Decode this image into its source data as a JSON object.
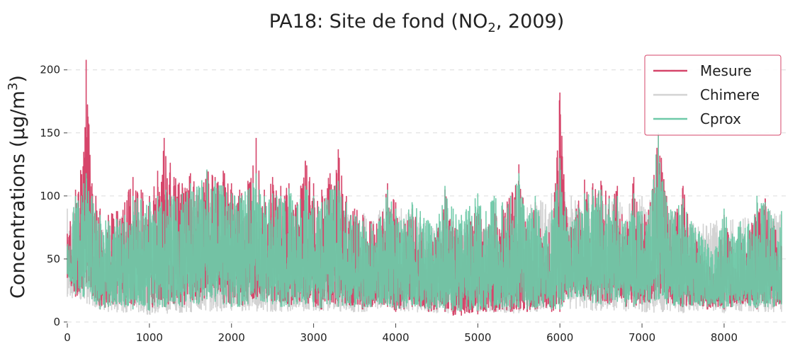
{
  "chart_data": {
    "type": "line",
    "title": {
      "prefix": "PA18: Site de fond (NO",
      "sub": "2",
      "suffix": ", 2009)"
    },
    "ylabel": {
      "prefix": "Concentrations (μg/m",
      "sup": "3",
      "suffix": ")"
    },
    "xlabel": "",
    "xlim": [
      0,
      8760
    ],
    "ylim": [
      0,
      215
    ],
    "xticks": [
      0,
      1000,
      2000,
      3000,
      4000,
      5000,
      6000,
      7000,
      8000
    ],
    "yticks": [
      0,
      50,
      100,
      150,
      200
    ],
    "grid": "y-dashed",
    "legend_position": "top-right",
    "series": [
      {
        "name": "Mesure",
        "color": "#d6456a",
        "envelope": {
          "x": [
            0,
            100,
            200,
            230,
            300,
            400,
            500,
            600,
            700,
            800,
            900,
            1000,
            1100,
            1180,
            1300,
            1400,
            1500,
            1600,
            1700,
            1800,
            1900,
            2000,
            2100,
            2200,
            2300,
            2400,
            2500,
            2600,
            2700,
            2800,
            2900,
            3000,
            3100,
            3200,
            3300,
            3400,
            3500,
            3600,
            3700,
            3800,
            3900,
            4000,
            4100,
            4200,
            4300,
            4400,
            4500,
            4600,
            4700,
            4800,
            4900,
            5000,
            5100,
            5200,
            5300,
            5400,
            5500,
            5600,
            5700,
            5800,
            5900,
            6000,
            6100,
            6200,
            6300,
            6400,
            6500,
            6600,
            6700,
            6800,
            6900,
            7000,
            7100,
            7200,
            7300,
            7400,
            7500,
            7600,
            7700,
            7800,
            7900,
            8000,
            8100,
            8200,
            8300,
            8400,
            8500,
            8600,
            8700
          ],
          "max": [
            70,
            105,
            135,
            208,
            110,
            90,
            85,
            88,
            95,
            115,
            105,
            100,
            120,
            146,
            115,
            110,
            118,
            105,
            120,
            115,
            120,
            110,
            105,
            112,
            146,
            105,
            115,
            108,
            110,
            95,
            128,
            110,
            105,
            118,
            137,
            100,
            90,
            85,
            80,
            82,
            110,
            95,
            80,
            90,
            75,
            62,
            70,
            105,
            80,
            72,
            82,
            90,
            75,
            95,
            90,
            100,
            125,
            75,
            95,
            60,
            78,
            182,
            70,
            90,
            113,
            110,
            112,
            100,
            108,
            75,
            115,
            85,
            95,
            148,
            100,
            85,
            108,
            75,
            60,
            45,
            42,
            85,
            60,
            75,
            70,
            95,
            98,
            80,
            60
          ],
          "min": [
            35,
            20,
            25,
            30,
            20,
            10,
            12,
            15,
            14,
            12,
            15,
            10,
            15,
            12,
            15,
            12,
            18,
            15,
            20,
            18,
            15,
            14,
            12,
            15,
            20,
            18,
            15,
            14,
            12,
            15,
            15,
            12,
            10,
            14,
            12,
            14,
            12,
            10,
            12,
            14,
            12,
            8,
            10,
            12,
            12,
            8,
            10,
            8,
            5,
            5,
            7,
            6,
            8,
            8,
            10,
            8,
            10,
            8,
            10,
            12,
            8,
            8,
            20,
            22,
            18,
            16,
            15,
            14,
            18,
            12,
            12,
            14,
            15,
            20,
            15,
            14,
            12,
            13,
            14,
            10,
            12,
            10,
            12,
            15,
            14,
            10,
            12,
            12,
            15
          ]
        }
      },
      {
        "name": "Chimere",
        "color": "#d3d3d3",
        "envelope": {
          "x": [
            0,
            500,
            1000,
            1500,
            2000,
            2500,
            3000,
            3500,
            4000,
            4500,
            5000,
            5500,
            6000,
            6500,
            7000,
            7500,
            8000,
            8500,
            8700
          ],
          "max": [
            90,
            85,
            95,
            100,
            90,
            85,
            88,
            85,
            92,
            78,
            80,
            90,
            105,
            95,
            100,
            85,
            80,
            90,
            85
          ],
          "min": [
            20,
            8,
            6,
            8,
            9,
            8,
            9,
            8,
            9,
            7,
            8,
            7,
            10,
            9,
            8,
            7,
            7,
            8,
            8
          ]
        }
      },
      {
        "name": "Cprox",
        "color": "#6ec9a8",
        "envelope": {
          "x": [
            0,
            100,
            200,
            230,
            300,
            400,
            500,
            600,
            700,
            800,
            900,
            1000,
            1100,
            1200,
            1300,
            1400,
            1500,
            1600,
            1700,
            1800,
            1900,
            2000,
            2100,
            2200,
            2300,
            2400,
            2500,
            2600,
            2700,
            2800,
            2900,
            3000,
            3100,
            3200,
            3300,
            3400,
            3500,
            3600,
            3700,
            3800,
            3900,
            4000,
            4100,
            4200,
            4300,
            4400,
            4500,
            4600,
            4700,
            4800,
            4900,
            5000,
            5100,
            5200,
            5300,
            5400,
            5500,
            5600,
            5700,
            5800,
            5900,
            6000,
            6100,
            6200,
            6300,
            6400,
            6500,
            6600,
            6700,
            6800,
            6900,
            7000,
            7100,
            7200,
            7300,
            7400,
            7500,
            7600,
            7700,
            7800,
            7900,
            8000,
            8100,
            8200,
            8300,
            8400,
            8500,
            8600,
            8700
          ],
          "max": [
            60,
            100,
            110,
            118,
            100,
            85,
            80,
            82,
            85,
            100,
            98,
            95,
            100,
            105,
            100,
            102,
            110,
            108,
            121,
            112,
            108,
            102,
            100,
            105,
            118,
            100,
            102,
            100,
            106,
            92,
            108,
            100,
            95,
            105,
            112,
            95,
            85,
            80,
            78,
            80,
            105,
            90,
            82,
            95,
            88,
            80,
            78,
            108,
            90,
            85,
            92,
            102,
            88,
            100,
            95,
            100,
            118,
            82,
            100,
            68,
            88,
            130,
            72,
            88,
            102,
            105,
            105,
            98,
            100,
            80,
            102,
            88,
            92,
            150,
            95,
            88,
            98,
            80,
            72,
            62,
            60,
            90,
            70,
            80,
            78,
            100,
            95,
            82,
            88
          ],
          "min": [
            38,
            22,
            20,
            28,
            18,
            10,
            12,
            14,
            12,
            10,
            14,
            9,
            12,
            12,
            14,
            12,
            16,
            14,
            18,
            16,
            14,
            12,
            12,
            14,
            18,
            16,
            14,
            12,
            12,
            14,
            14,
            12,
            11,
            14,
            12,
            13,
            12,
            11,
            12,
            14,
            13,
            10,
            11,
            13,
            12,
            10,
            11,
            10,
            9,
            9,
            10,
            9,
            10,
            10,
            11,
            10,
            11,
            10,
            11,
            12,
            10,
            10,
            18,
            20,
            17,
            15,
            14,
            14,
            16,
            12,
            12,
            14,
            15,
            18,
            14,
            13,
            12,
            13,
            13,
            12,
            12,
            11,
            12,
            14,
            13,
            11,
            12,
            12,
            14
          ]
        }
      }
    ]
  }
}
